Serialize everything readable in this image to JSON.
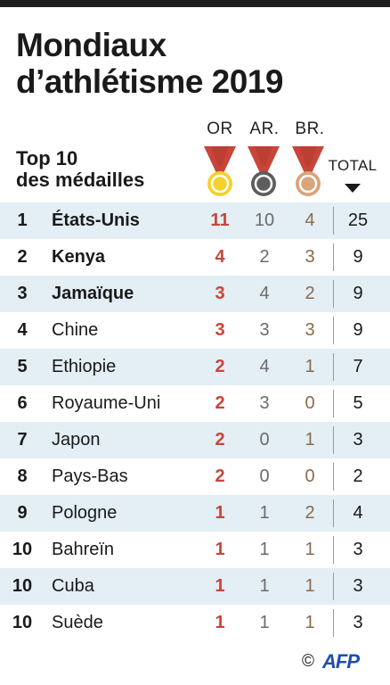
{
  "header": {
    "title_line1": "Mondiaux",
    "title_line2": "d’athlétisme 2019",
    "subtitle_line1": "Top 10",
    "subtitle_line2": "des médailles"
  },
  "columns": {
    "gold": "OR",
    "silver": "AR.",
    "bronze": "BR.",
    "total": "TOTAL"
  },
  "colors": {
    "gold": "#f4d22a",
    "silver": "#5e5e5e",
    "bronze": "#d9a37c",
    "ribbon": "#c8453a",
    "gold_value": "#c8453a",
    "row_shade": "#e3eef5"
  },
  "credit": {
    "symbol": "©",
    "agency": "AFP"
  },
  "chart_data": {
    "type": "table",
    "title": "Mondiaux d’athlétisme 2019",
    "subtitle": "Top 10 des médailles",
    "columns": [
      "OR",
      "AR.",
      "BR.",
      "TOTAL"
    ],
    "rows": [
      {
        "rank": "1",
        "country": "États-Unis",
        "gold": "11",
        "silver": "10",
        "bronze": "4",
        "total": "25"
      },
      {
        "rank": "2",
        "country": "Kenya",
        "gold": "4",
        "silver": "2",
        "bronze": "3",
        "total": "9"
      },
      {
        "rank": "3",
        "country": "Jamaïque",
        "gold": "3",
        "silver": "4",
        "bronze": "2",
        "total": "9"
      },
      {
        "rank": "4",
        "country": "Chine",
        "gold": "3",
        "silver": "3",
        "bronze": "3",
        "total": "9"
      },
      {
        "rank": "5",
        "country": "Ethiopie",
        "gold": "2",
        "silver": "4",
        "bronze": "1",
        "total": "7"
      },
      {
        "rank": "6",
        "country": "Royaume-Uni",
        "gold": "2",
        "silver": "3",
        "bronze": "0",
        "total": "5"
      },
      {
        "rank": "7",
        "country": "Japon",
        "gold": "2",
        "silver": "0",
        "bronze": "1",
        "total": "3"
      },
      {
        "rank": "8",
        "country": "Pays-Bas",
        "gold": "2",
        "silver": "0",
        "bronze": "0",
        "total": "2"
      },
      {
        "rank": "9",
        "country": "Pologne",
        "gold": "1",
        "silver": "1",
        "bronze": "2",
        "total": "4"
      },
      {
        "rank": "10",
        "country": "Bahreïn",
        "gold": "1",
        "silver": "1",
        "bronze": "1",
        "total": "3"
      },
      {
        "rank": "10",
        "country": "Cuba",
        "gold": "1",
        "silver": "1",
        "bronze": "1",
        "total": "3"
      },
      {
        "rank": "10",
        "country": "Suède",
        "gold": "1",
        "silver": "1",
        "bronze": "1",
        "total": "3"
      }
    ]
  }
}
